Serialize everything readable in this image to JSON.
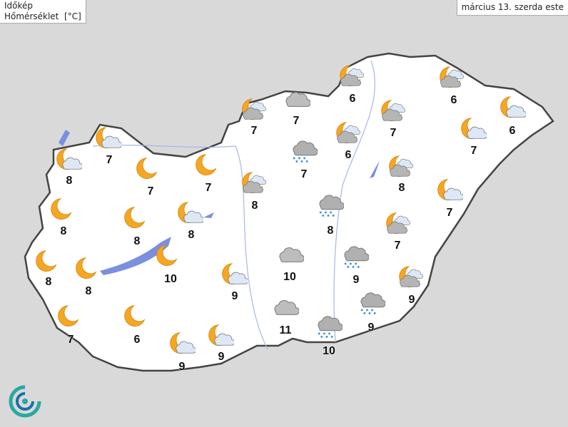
{
  "header": {
    "brand": "Időkép",
    "layer": "Hőmérséklet  [°C]",
    "date": "március 13. szerda este"
  },
  "colors": {
    "land": "#ffffff",
    "background": "#d9d9d9",
    "moon": "#f5a623",
    "water": "#7b8fe0",
    "border": "#444444"
  },
  "points": [
    {
      "icon": "moon-clouds",
      "temp": "7"
    },
    {
      "icon": "cloud",
      "temp": "7"
    },
    {
      "icon": "moon-clouds",
      "temp": "6"
    },
    {
      "icon": "moon-clouds",
      "temp": "6"
    },
    {
      "icon": "moon-cloud",
      "temp": "6"
    },
    {
      "icon": "moon-clouds",
      "temp": "7"
    },
    {
      "icon": "moon-cloud",
      "temp": "7"
    },
    {
      "icon": "moon-clouds",
      "temp": "6"
    },
    {
      "icon": "rain",
      "temp": "7"
    },
    {
      "icon": "moon-cloud",
      "temp": "7"
    },
    {
      "icon": "moon-cloud",
      "temp": "8"
    },
    {
      "icon": "moon",
      "temp": "7"
    },
    {
      "icon": "moon",
      "temp": "7"
    },
    {
      "icon": "moon-clouds",
      "temp": "8"
    },
    {
      "icon": "moon-clouds",
      "temp": "8"
    },
    {
      "icon": "moon-cloud",
      "temp": "7"
    },
    {
      "icon": "moon",
      "temp": "8"
    },
    {
      "icon": "moon",
      "temp": "8"
    },
    {
      "icon": "moon-cloud",
      "temp": "8"
    },
    {
      "icon": "rain",
      "temp": "8"
    },
    {
      "icon": "moon-clouds",
      "temp": "7"
    },
    {
      "icon": "moon",
      "temp": "8"
    },
    {
      "icon": "moon",
      "temp": "8"
    },
    {
      "icon": "moon",
      "temp": "10"
    },
    {
      "icon": "moon-cloud",
      "temp": "9"
    },
    {
      "icon": "cloud",
      "temp": "10"
    },
    {
      "icon": "rain",
      "temp": "9"
    },
    {
      "icon": "moon-clouds",
      "temp": "9"
    },
    {
      "icon": "moon",
      "temp": "7"
    },
    {
      "icon": "moon",
      "temp": "6"
    },
    {
      "icon": "cloud",
      "temp": "11"
    },
    {
      "icon": "rain",
      "temp": "9"
    },
    {
      "icon": "moon-cloud",
      "temp": "9"
    },
    {
      "icon": "moon-cloud",
      "temp": "9"
    },
    {
      "icon": "rain",
      "temp": "10"
    }
  ]
}
